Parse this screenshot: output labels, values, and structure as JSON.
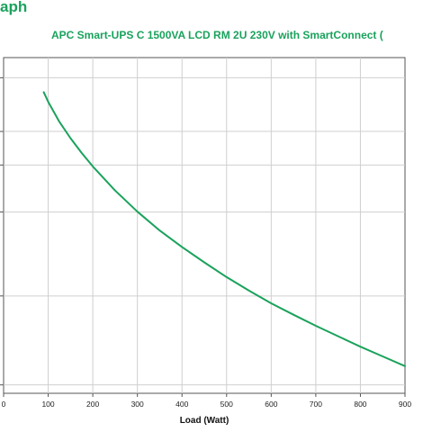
{
  "page": {
    "heading": "aph",
    "subtitle": "APC Smart-UPS C 1500VA LCD RM 2U 230V with SmartConnect (",
    "accent_color": "#1aa25c"
  },
  "chart_data": {
    "type": "line",
    "title": "APC Smart-UPS C 1500VA LCD RM 2U 230V with SmartConnect (",
    "xlabel": "Load (Watt)",
    "ylabel": "",
    "xlim": [
      0,
      900
    ],
    "x_ticks": [
      0,
      100,
      200,
      300,
      400,
      500,
      600,
      700,
      800,
      900
    ],
    "x_tick_labels": [
      "0",
      "100",
      "200",
      "300",
      "400",
      "500",
      "600",
      "700",
      "800",
      "900"
    ],
    "ylim": [
      0,
      1
    ],
    "y_ticks": [
      0.025,
      0.29,
      0.54,
      0.68,
      0.78,
      0.94
    ],
    "grid": true,
    "series": [
      {
        "color": "#1aa25c",
        "x": [
          90,
          100,
          125,
          150,
          175,
          200,
          250,
          300,
          350,
          400,
          450,
          500,
          550,
          600,
          650,
          700,
          750,
          800,
          850,
          900
        ],
        "y": [
          0.897,
          0.868,
          0.809,
          0.76,
          0.716,
          0.676,
          0.604,
          0.541,
          0.485,
          0.436,
          0.39,
          0.346,
          0.306,
          0.268,
          0.234,
          0.201,
          0.17,
          0.139,
          0.11,
          0.081
        ]
      }
    ]
  }
}
